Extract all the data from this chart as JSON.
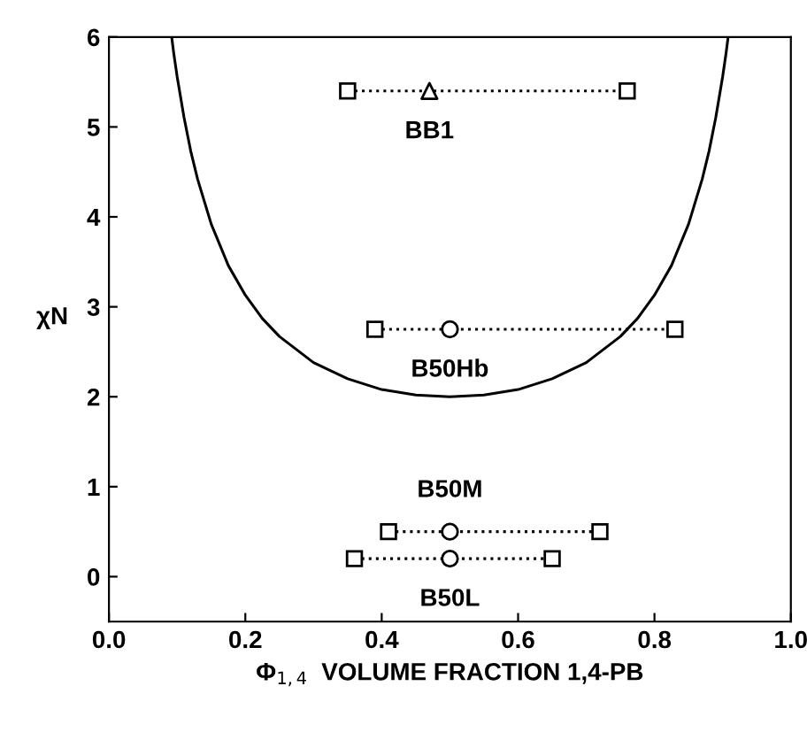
{
  "chart_data": {
    "type": "line",
    "xlabel": "Φ$_{1,4}$  VOLUME FRACTION 1,4-PB",
    "ylabel": "χN",
    "xlim": [
      0,
      1
    ],
    "ylim": [
      -0.5,
      6
    ],
    "xticks": [
      {
        "value": 0,
        "label": "0.0"
      },
      {
        "value": 0.2,
        "label": "0.2"
      },
      {
        "value": 0.4,
        "label": "0.4"
      },
      {
        "value": 0.6,
        "label": "0.6"
      },
      {
        "value": 0.8,
        "label": "0.8"
      },
      {
        "value": 1,
        "label": "1.0"
      }
    ],
    "yticks": [
      0,
      1,
      2,
      3,
      4,
      5,
      6
    ],
    "grid": false,
    "legend": false,
    "series": [
      {
        "color": "#000000",
        "line_style": "solid",
        "marker": "none",
        "x": [
          0.092,
          0.095,
          0.1,
          0.11,
          0.12,
          0.13,
          0.15,
          0.175,
          0.2,
          0.225,
          0.25,
          0.3,
          0.35,
          0.4,
          0.45,
          0.5,
          0.55,
          0.6,
          0.65,
          0.7,
          0.75,
          0.775,
          0.8,
          0.825,
          0.85,
          0.87,
          0.88,
          0.89,
          0.9,
          0.905,
          0.908
        ],
        "values": [
          6.0,
          5.82,
          5.56,
          5.11,
          4.73,
          4.42,
          3.92,
          3.46,
          3.13,
          2.87,
          2.67,
          2.38,
          2.2,
          2.08,
          2.02,
          2.0,
          2.02,
          2.08,
          2.2,
          2.38,
          2.67,
          2.87,
          3.13,
          3.46,
          3.92,
          4.42,
          4.73,
          5.11,
          5.56,
          5.82,
          6.0
        ]
      },
      {
        "type": "line",
        "color": "#000000",
        "line_style": "dotted",
        "marker": "square",
        "x": [
          0.35,
          0.76
        ],
        "values": [
          5.4,
          5.4
        ]
      },
      {
        "type": "scatter",
        "name": "BB1",
        "color": "#000000",
        "marker": "triangle",
        "x": [
          0.47
        ],
        "values": [
          5.4
        ]
      },
      {
        "type": "line",
        "color": "#000000",
        "line_style": "dotted",
        "marker": "square",
        "x": [
          0.39,
          0.83
        ],
        "values": [
          2.75,
          2.75
        ]
      },
      {
        "type": "scatter",
        "name": "B50Hb",
        "color": "#000000",
        "marker": "circle",
        "x": [
          0.5
        ],
        "values": [
          2.75
        ]
      },
      {
        "type": "line",
        "color": "#000000",
        "line_style": "dotted",
        "marker": "square",
        "x": [
          0.41,
          0.72
        ],
        "values": [
          0.5,
          0.5
        ]
      },
      {
        "type": "scatter",
        "name": "B50M",
        "color": "#000000",
        "marker": "circle",
        "x": [
          0.5
        ],
        "values": [
          0.5
        ]
      },
      {
        "type": "line",
        "color": "#000000",
        "line_style": "dotted",
        "marker": "square",
        "x": [
          0.36,
          0.65
        ],
        "values": [
          0.2,
          0.2
        ]
      },
      {
        "type": "scatter",
        "name": "B50L",
        "color": "#000000",
        "marker": "circle",
        "x": [
          0.5
        ],
        "values": [
          0.2
        ]
      }
    ]
  }
}
